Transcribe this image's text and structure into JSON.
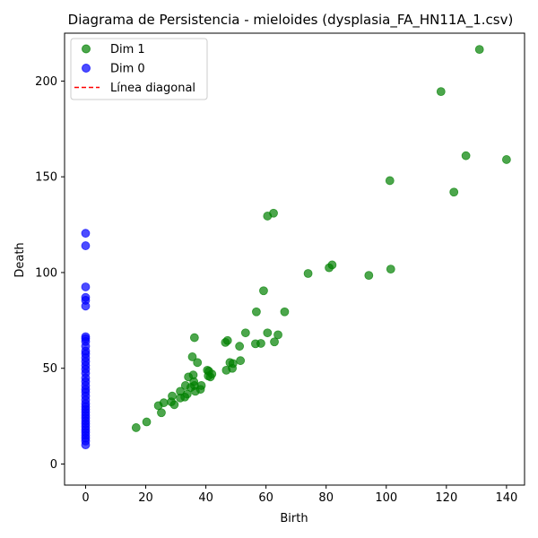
{
  "chart_data": {
    "type": "scatter",
    "title": "Diagrama de Persistencia - mieloides (dysplasia_FA_HN11A_1.csv)",
    "xlabel": "Birth",
    "ylabel": "Death",
    "xlim": [
      -7,
      146
    ],
    "ylim": [
      -11,
      225
    ],
    "xticks": [
      0,
      20,
      40,
      60,
      80,
      100,
      120,
      140
    ],
    "yticks": [
      0,
      50,
      100,
      150,
      200
    ],
    "grid": false,
    "legend_position": "upper-left",
    "legend": [
      {
        "label": "Dim 1",
        "color": "#008000",
        "kind": "marker"
      },
      {
        "label": "Dim 0",
        "color": "#0000ff",
        "kind": "marker"
      },
      {
        "label": "Línea diagonal",
        "color": "#ff0000",
        "kind": "dashed-line"
      }
    ],
    "series": [
      {
        "name": "Dim 1",
        "color": "#008000",
        "points": [
          [
            16.8,
            19
          ],
          [
            20.3,
            22
          ],
          [
            24.2,
            30.5
          ],
          [
            25.2,
            26.8
          ],
          [
            26,
            32
          ],
          [
            28.5,
            32.5
          ],
          [
            28.8,
            35.5
          ],
          [
            29.5,
            31
          ],
          [
            31.5,
            34.5
          ],
          [
            31.5,
            38
          ],
          [
            33,
            35
          ],
          [
            33.2,
            41
          ],
          [
            33.8,
            36.5
          ],
          [
            34.2,
            45.5
          ],
          [
            35,
            40
          ],
          [
            35.5,
            56
          ],
          [
            35.8,
            46.5
          ],
          [
            36,
            43
          ],
          [
            36.2,
            41
          ],
          [
            36.2,
            66
          ],
          [
            36.5,
            38
          ],
          [
            37.2,
            53
          ],
          [
            38.2,
            39
          ],
          [
            38.5,
            41
          ],
          [
            40.5,
            49
          ],
          [
            40.8,
            46
          ],
          [
            41,
            48.5
          ],
          [
            41.5,
            45.5
          ],
          [
            42,
            47
          ],
          [
            46.5,
            63.5
          ],
          [
            46.8,
            49
          ],
          [
            47.2,
            64.5
          ],
          [
            48,
            53
          ],
          [
            48.8,
            50
          ],
          [
            49,
            52.5
          ],
          [
            51.2,
            61.5
          ],
          [
            51.5,
            54
          ],
          [
            53.2,
            68.5
          ],
          [
            56.5,
            62.8
          ],
          [
            56.8,
            79.5
          ],
          [
            58.3,
            63
          ],
          [
            59.2,
            90.5
          ],
          [
            60.5,
            129.5
          ],
          [
            60.5,
            68.5
          ],
          [
            62.5,
            131
          ],
          [
            62.8,
            63.8
          ],
          [
            64,
            67.5
          ],
          [
            66.2,
            79.5
          ],
          [
            74,
            99.5
          ],
          [
            81,
            102.5
          ],
          [
            82,
            104
          ],
          [
            94.2,
            98.5
          ],
          [
            101.2,
            148
          ],
          [
            101.5,
            101.8
          ],
          [
            118.2,
            194.5
          ],
          [
            122.5,
            142
          ],
          [
            126.5,
            161
          ],
          [
            131,
            216.5
          ],
          [
            140,
            159
          ]
        ]
      },
      {
        "name": "Dim 0",
        "color": "#0000ff",
        "points": [
          [
            0,
            120.5
          ],
          [
            0,
            114
          ],
          [
            0,
            92.5
          ],
          [
            0,
            87
          ],
          [
            0,
            85.5
          ],
          [
            0,
            82.5
          ],
          [
            0,
            66.5
          ],
          [
            0,
            65.5
          ],
          [
            0,
            64
          ],
          [
            0,
            61.5
          ],
          [
            0,
            59
          ],
          [
            0,
            57.5
          ],
          [
            0,
            55.5
          ],
          [
            0,
            53.5
          ],
          [
            0,
            51.5
          ],
          [
            0,
            49.5
          ],
          [
            0,
            47.5
          ],
          [
            0,
            45
          ],
          [
            0,
            43
          ],
          [
            0,
            41
          ],
          [
            0,
            39
          ],
          [
            0,
            37.5
          ],
          [
            0,
            35.5
          ],
          [
            0,
            33.5
          ],
          [
            0,
            31.5
          ],
          [
            0,
            30
          ],
          [
            0,
            28.5
          ],
          [
            0,
            27
          ],
          [
            0,
            25.5
          ],
          [
            0,
            24
          ],
          [
            0,
            22.5
          ],
          [
            0,
            21
          ],
          [
            0,
            19.5
          ],
          [
            0,
            18
          ],
          [
            0,
            16.5
          ],
          [
            0,
            15
          ],
          [
            0,
            13.5
          ],
          [
            0,
            12
          ],
          [
            0,
            10
          ]
        ]
      }
    ]
  }
}
